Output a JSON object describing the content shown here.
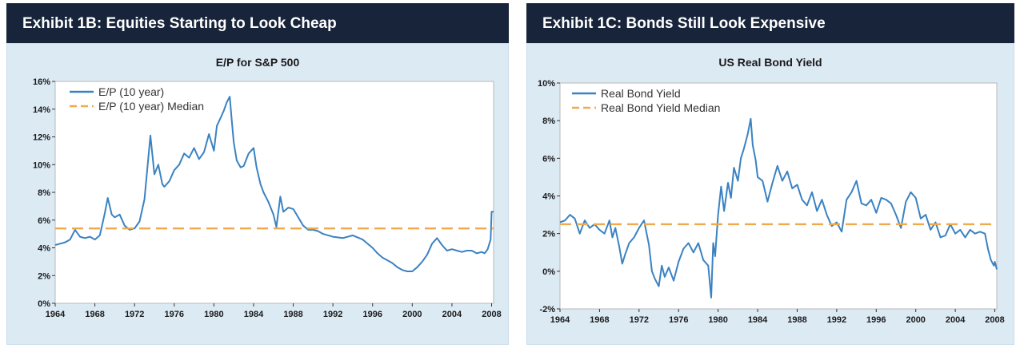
{
  "colors": {
    "header_bg": "#17243a",
    "panel_bg": "#dceaf4",
    "series": "#3a82c2",
    "median": "#f1a94e"
  },
  "panels": [
    {
      "header": "Exhibit 1B: Equities Starting to Look Cheap",
      "chart_data": {
        "type": "line",
        "title": "E/P for S&P 500",
        "xlabel": "",
        "ylabel": "",
        "xlim": [
          1964,
          2008.2
        ],
        "ylim": [
          0,
          16
        ],
        "x_ticks": [
          "1964",
          "1968",
          "1972",
          "1976",
          "1980",
          "1984",
          "1988",
          "1992",
          "1996",
          "2000",
          "2004",
          "2008"
        ],
        "y_ticks": [
          "0%",
          "2%",
          "4%",
          "6%",
          "8%",
          "10%",
          "12%",
          "14%",
          "16%"
        ],
        "legend_position": "top-left",
        "series": [
          {
            "name": "E/P (10 year)",
            "style": "solid",
            "x": [
              1964,
              1964.5,
              1965,
              1965.5,
              1966,
              1966.5,
              1967,
              1967.5,
              1968,
              1968.5,
              1969,
              1969.3,
              1969.7,
              1970,
              1970.5,
              1971,
              1971.5,
              1972,
              1972.5,
              1973,
              1973.3,
              1973.6,
              1974,
              1974.4,
              1974.8,
              1975,
              1975.5,
              1976,
              1976.5,
              1977,
              1977.5,
              1978,
              1978.5,
              1979,
              1979.5,
              1980,
              1980.3,
              1980.7,
              1981,
              1981.3,
              1981.6,
              1981.8,
              1982,
              1982.3,
              1982.7,
              1983,
              1983.5,
              1984,
              1984.3,
              1984.7,
              1985,
              1985.5,
              1986,
              1986.3,
              1986.7,
              1987,
              1987.5,
              1988,
              1988.5,
              1989,
              1989.5,
              1990,
              1990.5,
              1991,
              1992,
              1993,
              1994,
              1995,
              1996,
              1996.5,
              1997,
              1997.5,
              1998,
              1998.5,
              1999,
              1999.5,
              2000,
              2000.5,
              2001,
              2001.5,
              2002,
              2002.5,
              2003,
              2003.5,
              2004,
              2004.5,
              2005,
              2005.5,
              2006,
              2006.5,
              2007,
              2007.3,
              2007.6,
              2007.9,
              2008,
              2008.2
            ],
            "y": [
              4.2,
              4.3,
              4.4,
              4.6,
              5.3,
              4.8,
              4.7,
              4.8,
              4.6,
              4.9,
              6.5,
              7.6,
              6.4,
              6.2,
              6.4,
              5.6,
              5.3,
              5.4,
              5.9,
              7.5,
              9.8,
              12.1,
              9.3,
              10.0,
              8.6,
              8.4,
              8.8,
              9.6,
              10.0,
              10.8,
              10.5,
              11.2,
              10.4,
              10.9,
              12.2,
              11.0,
              12.8,
              13.4,
              13.9,
              14.5,
              14.9,
              13.2,
              11.6,
              10.3,
              9.8,
              9.9,
              10.8,
              11.2,
              9.8,
              8.6,
              8.0,
              7.3,
              6.4,
              5.5,
              7.7,
              6.6,
              6.9,
              6.8,
              6.2,
              5.6,
              5.3,
              5.3,
              5.2,
              5.0,
              4.8,
              4.7,
              4.9,
              4.6,
              4.0,
              3.6,
              3.3,
              3.1,
              2.9,
              2.6,
              2.4,
              2.3,
              2.3,
              2.6,
              3.0,
              3.5,
              4.3,
              4.7,
              4.2,
              3.8,
              3.9,
              3.8,
              3.7,
              3.8,
              3.8,
              3.6,
              3.7,
              3.6,
              3.9,
              4.6,
              6.6,
              6.6
            ]
          },
          {
            "name": "E/P (10 year) Median",
            "style": "dashed",
            "x": [
              1964,
              2008.2
            ],
            "y": [
              5.4,
              5.4
            ]
          }
        ]
      }
    },
    {
      "header": "Exhibit 1C: Bonds Still Look Expensive",
      "chart_data": {
        "type": "line",
        "title": "US Real Bond Yield",
        "xlabel": "",
        "ylabel": "",
        "xlim": [
          1964,
          2008.2
        ],
        "ylim": [
          -2,
          10
        ],
        "x_ticks": [
          "1964",
          "1968",
          "1972",
          "1976",
          "1980",
          "1984",
          "1988",
          "1992",
          "1996",
          "2000",
          "2004",
          "2008"
        ],
        "y_ticks": [
          "-2%",
          "0%",
          "2%",
          "4%",
          "6%",
          "8%",
          "10%"
        ],
        "legend_position": "top-left",
        "series": [
          {
            "name": "Real Bond Yield",
            "style": "solid",
            "x": [
              1964,
              1964.5,
              1965,
              1965.5,
              1966,
              1966.5,
              1967,
              1967.5,
              1968,
              1968.5,
              1969,
              1969.3,
              1969.6,
              1970,
              1970.3,
              1970.6,
              1971,
              1971.5,
              1972,
              1972.5,
              1973,
              1973.3,
              1973.6,
              1974,
              1974.3,
              1974.6,
              1975,
              1975.5,
              1976,
              1976.5,
              1977,
              1977.5,
              1978,
              1978.5,
              1979,
              1979.3,
              1979.5,
              1979.7,
              1980,
              1980.3,
              1980.6,
              1981,
              1981.3,
              1981.6,
              1982,
              1982.3,
              1982.6,
              1983,
              1983.3,
              1983.5,
              1983.8,
              1984,
              1984.5,
              1985,
              1985.5,
              1986,
              1986.5,
              1987,
              1987.5,
              1988,
              1988.5,
              1989,
              1989.5,
              1990,
              1990.5,
              1991,
              1991.5,
              1992,
              1992.5,
              1993,
              1993.5,
              1994,
              1994.5,
              1995,
              1995.5,
              1996,
              1996.5,
              1997,
              1997.5,
              1998,
              1998.5,
              1999,
              1999.5,
              2000,
              2000.5,
              2001,
              2001.5,
              2002,
              2002.5,
              2003,
              2003.5,
              2004,
              2004.5,
              2005,
              2005.5,
              2006,
              2006.5,
              2007,
              2007.3,
              2007.6,
              2007.9,
              2008,
              2008.2
            ],
            "y": [
              2.6,
              2.7,
              3.0,
              2.8,
              2.0,
              2.7,
              2.3,
              2.5,
              2.2,
              2.0,
              2.7,
              1.8,
              2.3,
              1.3,
              0.4,
              0.9,
              1.5,
              1.8,
              2.3,
              2.7,
              1.4,
              0.0,
              -0.4,
              -0.8,
              0.3,
              -0.3,
              0.2,
              -0.5,
              0.5,
              1.2,
              1.5,
              1.0,
              1.5,
              0.6,
              0.3,
              -1.4,
              1.5,
              0.8,
              3.0,
              4.5,
              3.2,
              4.7,
              3.9,
              5.5,
              4.8,
              6.0,
              6.5,
              7.3,
              8.1,
              6.7,
              5.9,
              5.0,
              4.8,
              3.7,
              4.7,
              5.6,
              4.8,
              5.3,
              4.4,
              4.6,
              3.8,
              3.5,
              4.2,
              3.2,
              3.8,
              3.0,
              2.4,
              2.6,
              2.1,
              3.8,
              4.2,
              4.8,
              3.6,
              3.5,
              3.8,
              3.1,
              3.9,
              3.8,
              3.6,
              3.0,
              2.3,
              3.7,
              4.2,
              3.9,
              2.8,
              3.0,
              2.2,
              2.6,
              1.8,
              1.9,
              2.5,
              2.0,
              2.2,
              1.8,
              2.2,
              2.0,
              2.1,
              2.0,
              1.2,
              0.6,
              0.3,
              0.5,
              0.1
            ]
          },
          {
            "name": "Real Bond Yield Median",
            "style": "dashed",
            "x": [
              1964,
              2008.2
            ],
            "y": [
              2.5,
              2.5
            ]
          }
        ]
      }
    }
  ]
}
